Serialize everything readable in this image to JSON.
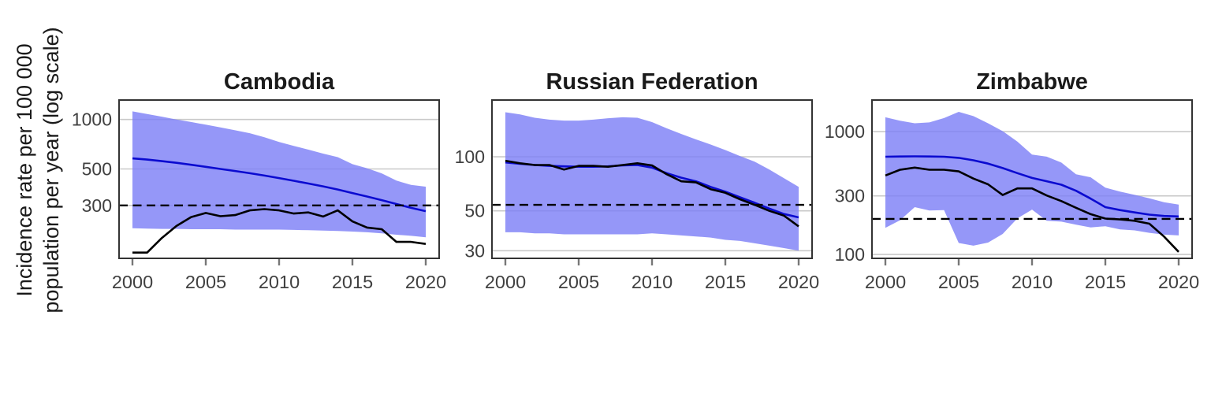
{
  "figure": {
    "ylabel_line1": "Incidence rate per 100 000",
    "ylabel_line2": "population per year (log scale)"
  },
  "colors": {
    "band": "#7e80f7",
    "estimate_line": "#0b0bd0",
    "notified_line": "#000000",
    "dashed_line": "#000000",
    "grid": "#c9c9c9",
    "border": "#333333",
    "tick": "#777777",
    "tick_label": "#404040",
    "title_text": "#1a1a1a"
  },
  "chart_data": [
    {
      "type": "line",
      "title": "Cambodia",
      "y_scale": "log10",
      "ylim": [
        143,
        1313
      ],
      "y_ticks": [
        1000,
        500,
        300
      ],
      "x_ticks": [
        2000,
        2005,
        2010,
        2015,
        2020
      ],
      "dashed_reference": 300,
      "x": [
        2000,
        2001,
        2002,
        2003,
        2004,
        2005,
        2006,
        2007,
        2008,
        2009,
        2010,
        2011,
        2012,
        2013,
        2014,
        2015,
        2016,
        2017,
        2018,
        2019,
        2020
      ],
      "series": [
        {
          "name": "blue-estimate",
          "color": "#0b0bd0",
          "values": [
            580,
            570,
            558,
            545,
            530,
            515,
            500,
            486,
            471,
            456,
            440,
            424,
            408,
            392,
            375,
            357,
            340,
            323,
            306,
            290,
            277
          ]
        },
        {
          "name": "black-observed",
          "color": "#000000",
          "values": [
            155,
            155,
            190,
            225,
            255,
            270,
            258,
            262,
            280,
            285,
            280,
            268,
            272,
            257,
            280,
            240,
            220,
            215,
            180,
            180,
            175
          ]
        }
      ],
      "band": {
        "name": "uncertainty-band",
        "color": "#7e80f7",
        "upper": [
          1120,
          1080,
          1040,
          1000,
          965,
          930,
          895,
          860,
          825,
          780,
          730,
          690,
          655,
          620,
          590,
          535,
          505,
          470,
          425,
          400,
          390
        ],
        "lower": [
          218,
          217,
          216,
          216,
          215,
          215,
          215,
          214,
          214,
          214,
          214,
          213,
          212,
          211,
          210,
          208,
          206,
          203,
          199,
          196,
          192
        ]
      }
    },
    {
      "type": "line",
      "title": "Russian Federation",
      "y_scale": "log10",
      "ylim": [
        27.2,
        207
      ],
      "y_ticks": [
        100,
        50,
        30
      ],
      "x_ticks": [
        2000,
        2005,
        2010,
        2015,
        2020
      ],
      "dashed_reference": 54,
      "x": [
        2000,
        2001,
        2002,
        2003,
        2004,
        2005,
        2006,
        2007,
        2008,
        2009,
        2010,
        2011,
        2012,
        2013,
        2014,
        2015,
        2016,
        2017,
        2018,
        2019,
        2020
      ],
      "series": [
        {
          "name": "blue-estimate",
          "color": "#0b0bd0",
          "values": [
            93,
            91.5,
            90,
            89,
            88.5,
            88,
            88,
            88.5,
            89.5,
            90,
            87,
            81,
            76.5,
            73,
            68,
            64,
            59.5,
            55.5,
            51.5,
            48,
            46
          ]
        },
        {
          "name": "black-observed",
          "color": "#000000",
          "values": [
            95,
            92,
            90,
            90,
            85,
            89,
            89,
            88,
            90,
            92,
            89.5,
            80,
            73,
            72,
            66,
            63,
            58,
            54,
            50,
            47,
            41
          ]
        }
      ],
      "band": {
        "name": "uncertainty-band",
        "color": "#7e80f7",
        "upper": [
          177,
          172,
          165,
          161,
          159,
          159,
          161,
          164,
          166,
          165,
          156,
          144,
          134,
          125,
          117,
          109,
          101,
          94,
          85,
          76,
          68
        ],
        "lower": [
          38,
          38,
          37.5,
          37.5,
          37,
          37,
          37,
          37,
          37,
          37,
          37.5,
          37,
          36.5,
          36,
          35.5,
          34.5,
          34,
          33,
          32,
          31,
          30
        ]
      }
    },
    {
      "type": "line",
      "title": "Zimbabwe",
      "y_scale": "log10",
      "ylim": [
        93,
        1810
      ],
      "y_ticks": [
        1000,
        300,
        100
      ],
      "x_ticks": [
        2000,
        2005,
        2010,
        2015,
        2020
      ],
      "dashed_reference": 195,
      "x": [
        2000,
        2001,
        2002,
        2003,
        2004,
        2005,
        2006,
        2007,
        2008,
        2009,
        2010,
        2011,
        2012,
        2013,
        2014,
        2015,
        2016,
        2017,
        2018,
        2019,
        2020
      ],
      "series": [
        {
          "name": "blue-estimate",
          "color": "#0b0bd0",
          "values": [
            625,
            628,
            630,
            628,
            625,
            612,
            585,
            550,
            505,
            460,
            420,
            395,
            370,
            330,
            285,
            243,
            230,
            220,
            211,
            206,
            204
          ]
        },
        {
          "name": "black-observed",
          "color": "#000000",
          "values": [
            440,
            490,
            510,
            490,
            490,
            475,
            415,
            373,
            305,
            345,
            345,
            302,
            272,
            240,
            213,
            196,
            193,
            188,
            178,
            140,
            105
          ]
        }
      ],
      "band": {
        "name": "uncertainty-band",
        "color": "#7e80f7",
        "upper": [
          1310,
          1230,
          1170,
          1190,
          1290,
          1450,
          1340,
          1170,
          1010,
          830,
          650,
          626,
          560,
          450,
          425,
          350,
          325,
          306,
          287,
          266,
          255
        ],
        "lower": [
          165,
          190,
          243,
          228,
          230,
          124,
          118,
          125,
          147,
          197,
          232,
          188,
          185,
          175,
          166,
          170,
          160,
          157,
          150,
          145,
          143
        ]
      }
    }
  ]
}
